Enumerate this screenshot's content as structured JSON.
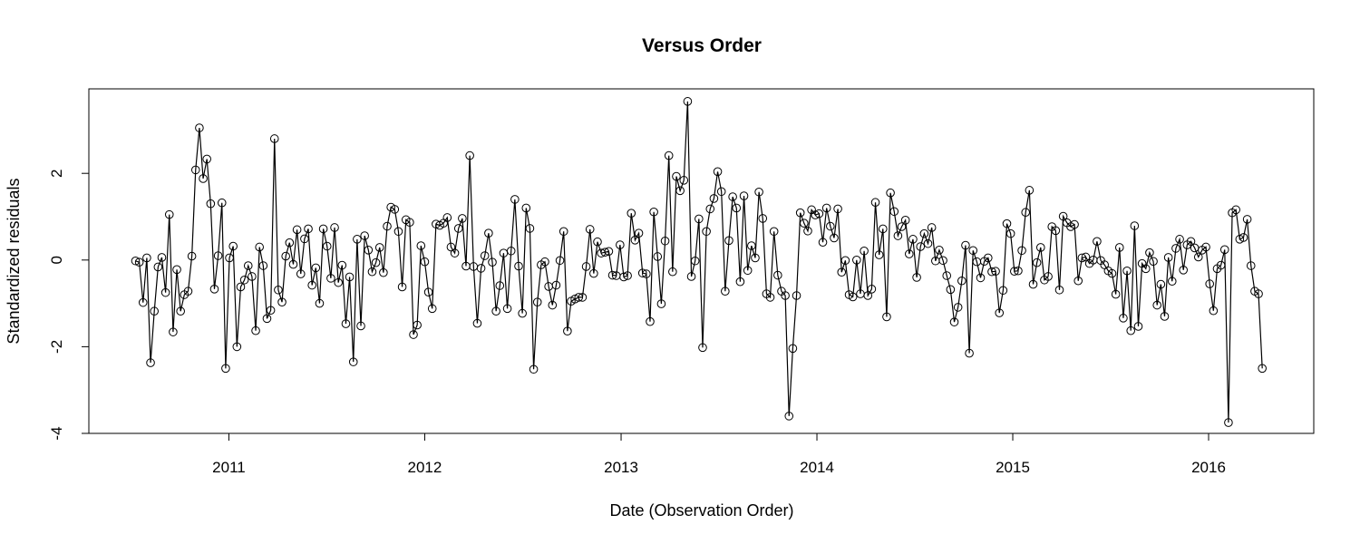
{
  "chart_data": {
    "type": "line",
    "title": "Versus Order",
    "xlabel": "Date (Observation Order)",
    "ylabel": "Standardized residuals",
    "x_ticks": [
      "2011",
      "2012",
      "2013",
      "2014",
      "2015",
      "2016"
    ],
    "y_ticks": [
      "-4",
      "-2",
      "0",
      "2"
    ],
    "xlim": [
      "2010-04-15",
      "2016-07-15"
    ],
    "ylim": [
      -4.0,
      3.95
    ],
    "grid": false,
    "legend": "none",
    "marker": "open-circle",
    "line_color": "#000000",
    "series": [
      {
        "start_date": "2010-07-11",
        "interval_days": 7,
        "values": [
          -0.02,
          -0.05,
          -0.98,
          0.05,
          -2.37,
          -1.18,
          -0.16,
          0.06,
          -0.75,
          1.05,
          -1.66,
          -0.22,
          -1.18,
          -0.8,
          -0.72,
          0.09,
          2.08,
          3.05,
          1.88,
          2.33,
          1.3,
          -0.67,
          0.1,
          1.32,
          -2.5,
          0.05,
          0.32,
          -2.0,
          -0.62,
          -0.46,
          -0.13,
          -0.38,
          -1.63,
          0.3,
          -0.13,
          -1.35,
          -1.16,
          2.8,
          -0.69,
          -0.97,
          0.09,
          0.4,
          -0.1,
          0.7,
          -0.32,
          0.49,
          0.72,
          -0.58,
          -0.18,
          -1.0,
          0.72,
          0.32,
          -0.42,
          0.75,
          -0.52,
          -0.12,
          -1.47,
          -0.39,
          -2.35,
          0.48,
          -1.52,
          0.56,
          0.23,
          -0.27,
          -0.06,
          0.29,
          -0.29,
          0.78,
          1.22,
          1.17,
          0.66,
          -0.62,
          0.93,
          0.87,
          -1.72,
          -1.5,
          0.33,
          -0.04,
          -0.74,
          -1.12,
          0.83,
          0.8,
          0.85,
          0.98,
          0.3,
          0.16,
          0.73,
          0.96,
          -0.14,
          2.41,
          -0.15,
          -1.46,
          -0.19,
          0.1,
          0.62,
          -0.05,
          -1.18,
          -0.59,
          0.16,
          -1.12,
          0.21,
          1.4,
          -0.14,
          -1.23,
          1.2,
          0.73,
          -2.52,
          -0.97,
          -0.11,
          -0.04,
          -0.61,
          -1.04,
          -0.58,
          -0.01,
          0.66,
          -1.64,
          -0.95,
          -0.9,
          -0.86,
          -0.86,
          -0.15,
          0.71,
          -0.31,
          0.42,
          0.16,
          0.18,
          0.2,
          -0.35,
          -0.36,
          0.35,
          -0.39,
          -0.36,
          1.08,
          0.46,
          0.62,
          -0.3,
          -0.32,
          -1.42,
          1.11,
          0.08,
          -1.01,
          0.44,
          2.41,
          -0.27,
          1.93,
          1.6,
          1.84,
          3.66,
          -0.38,
          -0.02,
          0.95,
          -2.02,
          0.66,
          1.18,
          1.42,
          2.04,
          1.58,
          -0.72,
          0.45,
          1.46,
          1.2,
          -0.5,
          1.48,
          -0.24,
          0.33,
          0.05,
          1.57,
          0.96,
          -0.78,
          -0.86,
          0.66,
          -0.35,
          -0.72,
          -0.82,
          -3.6,
          -2.04,
          -0.82,
          1.09,
          0.85,
          0.67,
          1.16,
          1.04,
          1.07,
          0.41,
          1.2,
          0.78,
          0.51,
          1.18,
          -0.28,
          -0.01,
          -0.8,
          -0.85,
          0.0,
          -0.78,
          0.21,
          -0.82,
          -0.67,
          1.33,
          0.12,
          0.72,
          -1.31,
          1.55,
          1.12,
          0.56,
          0.77,
          0.92,
          0.14,
          0.48,
          -0.4,
          0.31,
          0.61,
          0.38,
          0.75,
          -0.02,
          0.23,
          -0.01,
          -0.36,
          -0.68,
          -1.43,
          -1.09,
          -0.48,
          0.34,
          -2.15,
          0.22,
          -0.04,
          -0.41,
          -0.03,
          0.05,
          -0.27,
          -0.26,
          -1.22,
          -0.7,
          0.84,
          0.61,
          -0.26,
          -0.25,
          0.22,
          1.1,
          1.61,
          -0.56,
          -0.06,
          0.29,
          -0.46,
          -0.38,
          0.77,
          0.68,
          -0.69,
          1.01,
          0.86,
          0.77,
          0.82,
          -0.48,
          0.05,
          0.07,
          -0.08,
          0.0,
          0.43,
          -0.01,
          -0.11,
          -0.25,
          -0.31,
          -0.79,
          0.29,
          -1.34,
          -0.25,
          -1.63,
          0.79,
          -1.53,
          -0.08,
          -0.2,
          0.17,
          -0.03,
          -1.04,
          -0.56,
          -1.3,
          0.06,
          -0.49,
          0.27,
          0.48,
          -0.23,
          0.35,
          0.43,
          0.28,
          0.07,
          0.23,
          0.3,
          -0.55,
          -1.17,
          -0.2,
          -0.12,
          0.24,
          -3.75,
          1.09,
          1.16,
          0.48,
          0.52,
          0.94,
          -0.13,
          -0.72,
          -0.78,
          -2.5
        ]
      }
    ]
  }
}
